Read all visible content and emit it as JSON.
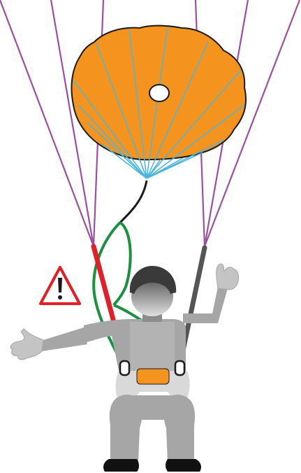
{
  "colors": {
    "canopy_fill": "#F4941F",
    "canopy_outline": "#1A1A1A",
    "canopy_seams": "#49B6E0",
    "paraglider_lines": "#9B4FA1",
    "reserve_bridle": "#1A1A1A",
    "reserve_bridle_green": "#1A9140",
    "left_riser_red": "#E11F26",
    "right_riser_grey": "#555555",
    "pilot_grey": "#A6A6A6",
    "pilot_dark": "#808080",
    "helmet": "#3A3A3A",
    "reserve_container": "#F4941F",
    "boots": "#111111",
    "warning_red": "#E11F26"
  },
  "icons": [
    "reserve-canopy-icon",
    "warning-triangle-icon",
    "pilot-icon",
    "carabiner-icon"
  ]
}
